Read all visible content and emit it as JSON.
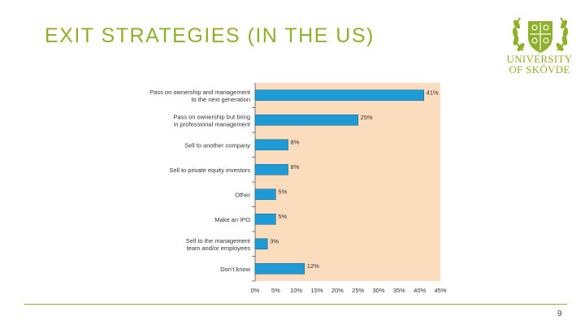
{
  "slide": {
    "title": "EXIT STRATEGIES (IN THE US)",
    "page_number": "9"
  },
  "logo": {
    "line1": "UNIVERSITY",
    "line2": "OF SKÖVDE",
    "icon": "university-crest-icon"
  },
  "colors": {
    "accent": "#8fb02a",
    "bar": "#1e9bd7",
    "plot_bg": "#fbdcbc"
  },
  "chart_data": {
    "type": "bar",
    "orientation": "horizontal",
    "categories": [
      [
        "Pass on ownership and management",
        "to the next generation"
      ],
      [
        "Pass on ownership but bring",
        "in professional management"
      ],
      [
        "Sell to another company"
      ],
      [
        "Sell to private equity investors"
      ],
      [
        "Other"
      ],
      [
        "Make an IPO"
      ],
      [
        "Sell to the management",
        "team and/or employees"
      ],
      [
        "Don't know"
      ]
    ],
    "values": [
      41,
      25,
      8,
      8,
      5,
      5,
      3,
      12
    ],
    "data_labels": [
      "41%",
      "25%",
      "8%",
      "8%",
      "5%",
      "5%",
      "3%",
      "12%"
    ],
    "xlim": [
      0,
      45
    ],
    "x_ticks": [
      "0%",
      "5%",
      "10%",
      "15%",
      "20%",
      "25%",
      "30%",
      "35%",
      "40%",
      "45%"
    ],
    "grid": false
  }
}
